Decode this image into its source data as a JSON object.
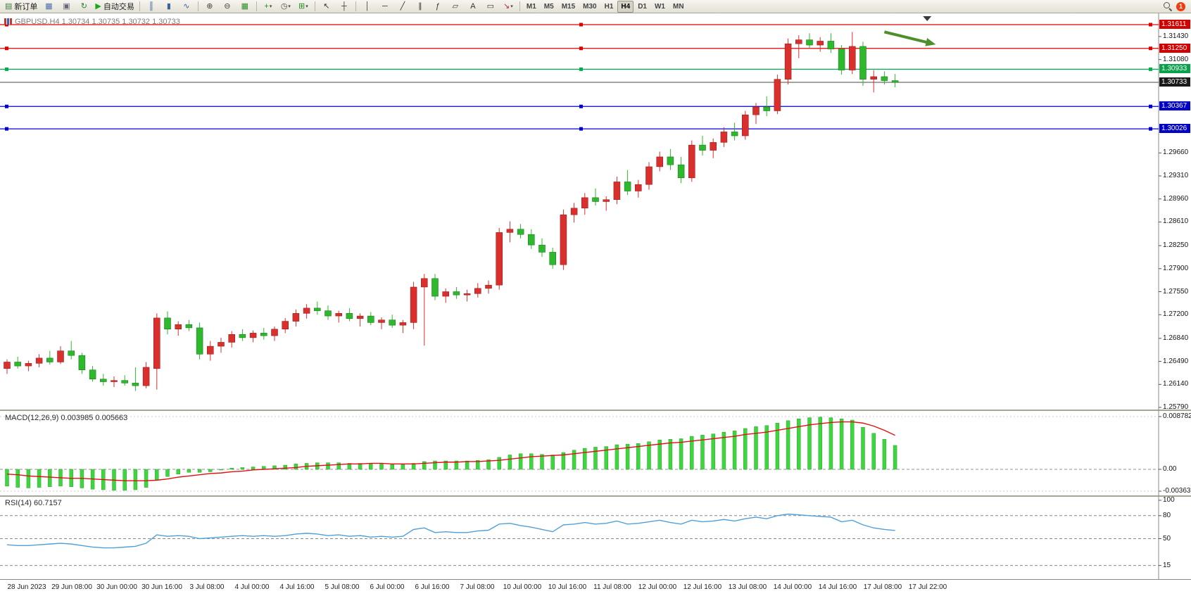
{
  "toolbar": {
    "items": [
      {
        "icon": "new-order-icon",
        "label": "新订单"
      },
      {
        "icon": "chart-window-icon"
      },
      {
        "icon": "print-icon"
      },
      {
        "icon": "refresh-icon"
      },
      {
        "icon": "autotrade-icon",
        "label": "自动交易"
      },
      {
        "sep": true
      },
      {
        "icon": "bars-chart-icon"
      },
      {
        "icon": "candles-chart-icon"
      },
      {
        "icon": "line-chart-icon"
      },
      {
        "sep": true
      },
      {
        "icon": "zoom-in-icon"
      },
      {
        "icon": "zoom-out-icon"
      },
      {
        "icon": "tile-windows-icon"
      },
      {
        "sep": true
      },
      {
        "icon": "new-chart-icon",
        "caret": true
      },
      {
        "icon": "profiles-icon",
        "caret": true
      },
      {
        "icon": "indicators-icon",
        "caret": true
      },
      {
        "sep": true
      },
      {
        "icon": "cursor-icon"
      },
      {
        "icon": "crosshair-icon"
      },
      {
        "sep": true
      },
      {
        "icon": "vline-icon"
      },
      {
        "icon": "hline-icon"
      },
      {
        "icon": "trendline-icon"
      },
      {
        "icon": "channel-icon"
      },
      {
        "icon": "fibo-icon"
      },
      {
        "icon": "shapes-icon"
      },
      {
        "icon": "text-icon"
      },
      {
        "icon": "label-icon"
      },
      {
        "icon": "arrows-icon",
        "caret": true
      },
      {
        "sep": true
      }
    ],
    "timeframes": {
      "items": [
        "M1",
        "M5",
        "M15",
        "M30",
        "H1",
        "H4",
        "D1",
        "W1",
        "MN"
      ],
      "active": "H4"
    },
    "notification_count": "1"
  },
  "chart_header": {
    "text": "GBPUSD,H4  1.30734 1.30735 1.30732 1.30733"
  },
  "chart_data": [
    {
      "type": "candlestick",
      "symbol": "GBPUSD",
      "timeframe": "H4",
      "ylim": [
        1.2579,
        1.31611
      ],
      "colors": {
        "up": "#d9302e",
        "down": "#2eb82e"
      },
      "ohlc": [
        [
          1.2638,
          1.2652,
          1.263,
          1.2648
        ],
        [
          1.2648,
          1.2656,
          1.2638,
          1.2642
        ],
        [
          1.2642,
          1.265,
          1.2634,
          1.2646
        ],
        [
          1.2646,
          1.266,
          1.264,
          1.2654
        ],
        [
          1.2654,
          1.2665,
          1.2644,
          1.2648
        ],
        [
          1.2648,
          1.2672,
          1.2645,
          1.2665
        ],
        [
          1.2665,
          1.268,
          1.2652,
          1.2658
        ],
        [
          1.2658,
          1.2662,
          1.263,
          1.2636
        ],
        [
          1.2636,
          1.2642,
          1.2618,
          1.2622
        ],
        [
          1.2622,
          1.263,
          1.2612,
          1.2618
        ],
        [
          1.2618,
          1.2626,
          1.261,
          1.262
        ],
        [
          1.262,
          1.2628,
          1.2612,
          1.2616
        ],
        [
          1.2616,
          1.264,
          1.2604,
          1.2612
        ],
        [
          1.2612,
          1.2648,
          1.2608,
          1.264
        ],
        [
          1.2638,
          1.2722,
          1.2606,
          1.2715
        ],
        [
          1.2715,
          1.2725,
          1.269,
          1.2698
        ],
        [
          1.2698,
          1.271,
          1.2688,
          1.2705
        ],
        [
          1.2705,
          1.2712,
          1.2695,
          1.27
        ],
        [
          1.27,
          1.2708,
          1.2652,
          1.266
        ],
        [
          1.266,
          1.268,
          1.265,
          1.2672
        ],
        [
          1.2672,
          1.2685,
          1.2662,
          1.2678
        ],
        [
          1.2678,
          1.2695,
          1.267,
          1.269
        ],
        [
          1.269,
          1.2698,
          1.268,
          1.2685
        ],
        [
          1.2685,
          1.2696,
          1.2678,
          1.2692
        ],
        [
          1.2692,
          1.27,
          1.2682,
          1.2688
        ],
        [
          1.2688,
          1.2702,
          1.268,
          1.2698
        ],
        [
          1.2698,
          1.2715,
          1.2692,
          1.271
        ],
        [
          1.271,
          1.2728,
          1.2702,
          1.2722
        ],
        [
          1.2722,
          1.2736,
          1.2714,
          1.273
        ],
        [
          1.273,
          1.274,
          1.272,
          1.2726
        ],
        [
          1.2726,
          1.2734,
          1.2712,
          1.2718
        ],
        [
          1.2718,
          1.2726,
          1.2708,
          1.2722
        ],
        [
          1.2722,
          1.273,
          1.271,
          1.2714
        ],
        [
          1.2714,
          1.2722,
          1.2702,
          1.2718
        ],
        [
          1.2718,
          1.2724,
          1.2704,
          1.2708
        ],
        [
          1.2708,
          1.2716,
          1.2698,
          1.2712
        ],
        [
          1.2712,
          1.272,
          1.27,
          1.2704
        ],
        [
          1.2704,
          1.2712,
          1.2692,
          1.2708
        ],
        [
          1.2708,
          1.277,
          1.2698,
          1.2762
        ],
        [
          1.2762,
          1.2782,
          1.2673,
          1.2775
        ],
        [
          1.2775,
          1.2782,
          1.2742,
          1.2748
        ],
        [
          1.2748,
          1.276,
          1.2738,
          1.2755
        ],
        [
          1.2755,
          1.2762,
          1.2744,
          1.275
        ],
        [
          1.275,
          1.2758,
          1.274,
          1.2752
        ],
        [
          1.2752,
          1.2768,
          1.2746,
          1.276
        ],
        [
          1.276,
          1.2772,
          1.2752,
          1.2765
        ],
        [
          1.2765,
          1.2852,
          1.2758,
          1.2845
        ],
        [
          1.2845,
          1.2862,
          1.283,
          1.285
        ],
        [
          1.285,
          1.2858,
          1.2836,
          1.2842
        ],
        [
          1.2842,
          1.285,
          1.282,
          1.2826
        ],
        [
          1.2826,
          1.2836,
          1.2808,
          1.2815
        ],
        [
          1.2815,
          1.2822,
          1.279,
          1.2796
        ],
        [
          1.2796,
          1.288,
          1.2788,
          1.2872
        ],
        [
          1.2872,
          1.289,
          1.286,
          1.2882
        ],
        [
          1.2882,
          1.2905,
          1.2872,
          1.2898
        ],
        [
          1.2898,
          1.2912,
          1.2886,
          1.2892
        ],
        [
          1.2892,
          1.29,
          1.2878,
          1.2895
        ],
        [
          1.2895,
          1.293,
          1.2888,
          1.2922
        ],
        [
          1.2922,
          1.294,
          1.2902,
          1.2908
        ],
        [
          1.2908,
          1.2925,
          1.2898,
          1.2918
        ],
        [
          1.2918,
          1.2952,
          1.291,
          1.2945
        ],
        [
          1.2945,
          1.2968,
          1.2938,
          1.296
        ],
        [
          1.296,
          1.2972,
          1.294,
          1.2948
        ],
        [
          1.2948,
          1.296,
          1.292,
          1.2928
        ],
        [
          1.2928,
          1.2985,
          1.2922,
          1.2978
        ],
        [
          1.2978,
          1.2992,
          1.2962,
          1.297
        ],
        [
          1.297,
          1.2988,
          1.2958,
          1.2982
        ],
        [
          1.2982,
          1.3005,
          1.2975,
          1.2998
        ],
        [
          1.2998,
          1.3012,
          1.2985,
          1.2992
        ],
        [
          1.2992,
          1.303,
          1.2986,
          1.3024
        ],
        [
          1.3024,
          1.3042,
          1.301,
          1.3036
        ],
        [
          1.3036,
          1.3052,
          1.3022,
          1.303
        ],
        [
          1.303,
          1.3085,
          1.3025,
          1.3078
        ],
        [
          1.3078,
          1.314,
          1.307,
          1.3132
        ],
        [
          1.3132,
          1.3145,
          1.311,
          1.3138
        ],
        [
          1.3138,
          1.3148,
          1.3125,
          1.313
        ],
        [
          1.313,
          1.3142,
          1.312,
          1.3136
        ],
        [
          1.3136,
          1.3148,
          1.3118,
          1.3124
        ],
        [
          1.3124,
          1.313,
          1.3085,
          1.3092
        ],
        [
          1.3092,
          1.315,
          1.3086,
          1.3128
        ],
        [
          1.3128,
          1.3135,
          1.3068,
          1.3078
        ],
        [
          1.3078,
          1.3092,
          1.3058,
          1.3082
        ],
        [
          1.3082,
          1.309,
          1.307,
          1.3076
        ],
        [
          1.3076,
          1.3086,
          1.3066,
          1.30733
        ]
      ],
      "hlines": [
        {
          "price": 1.31611,
          "color": "#e00000",
          "selected": true,
          "w": 1.3
        },
        {
          "price": 1.3125,
          "color": "#e00000",
          "selected": true,
          "w": 1.3
        },
        {
          "price": 1.30933,
          "color": "#00b050",
          "selected": true,
          "w": 1.3
        },
        {
          "price": 1.30733,
          "color": "#4a4a4a",
          "selected": false,
          "w": 1
        },
        {
          "price": 1.30367,
          "color": "#0000d0",
          "selected": true,
          "w": 1.3
        },
        {
          "price": 1.30026,
          "color": "#0000d0",
          "selected": true,
          "w": 1.3
        }
      ],
      "price_ticks": [
        "1.31430",
        "1.31080",
        "1.29660",
        "1.29310",
        "1.28960",
        "1.28610",
        "1.28250",
        "1.27900",
        "1.27550",
        "1.27200",
        "1.26840",
        "1.26490",
        "1.26140",
        "1.25790"
      ],
      "price_badges": [
        {
          "value": "1.31611",
          "color": "#d20000"
        },
        {
          "value": "1.31250",
          "color": "#d20000"
        },
        {
          "value": "1.30933",
          "color": "#0aa14a"
        },
        {
          "value": "1.30733",
          "color": "#1a1a1a"
        },
        {
          "value": "1.30367",
          "color": "#0000c8"
        },
        {
          "value": "1.30026",
          "color": "#0000c8"
        }
      ],
      "time_labels": [
        "28 Jun 2023",
        "29 Jun 08:00",
        "30 Jun 00:00",
        "30 Jun 16:00",
        "3 Jul 08:00",
        "4 Jul 00:00",
        "4 Jul 16:00",
        "5 Jul 08:00",
        "6 Jul 00:00",
        "6 Jul 16:00",
        "7 Jul 08:00",
        "10 Jul 00:00",
        "10 Jul 16:00",
        "11 Jul 08:00",
        "12 Jul 00:00",
        "12 Jul 16:00",
        "13 Jul 08:00",
        "14 Jul 00:00",
        "14 Jul 16:00",
        "17 Jul 08:00",
        "17 Jul 22:00"
      ],
      "annotations": [
        {
          "type": "arrow",
          "from": {
            "index": 82,
            "price": 1.315
          },
          "to": {
            "index": 86.8,
            "price": 1.3131
          },
          "color": "#4e8f2c"
        },
        {
          "type": "shift-marker",
          "index": 86
        }
      ]
    },
    {
      "type": "bar",
      "title": "MACD(12,26,9) 0.003985 0.005663",
      "bar_color": "#3ed63e",
      "line_color": "#e01010",
      "histogram": [
        -0.0028,
        -0.003,
        -0.0031,
        -0.003,
        -0.0029,
        -0.0028,
        -0.0029,
        -0.0031,
        -0.0033,
        -0.0034,
        -0.0035,
        -0.0035,
        -0.0034,
        -0.003,
        -0.0018,
        -0.0012,
        -0.0008,
        -0.0005,
        -0.0005,
        -0.0004,
        0.0,
        0.0002,
        0.0003,
        0.0004,
        0.0005,
        0.0006,
        0.0007,
        0.0009,
        0.001,
        0.0011,
        0.0011,
        0.0011,
        0.001,
        0.001,
        0.0009,
        0.0009,
        0.0008,
        0.0008,
        0.001,
        0.0013,
        0.0014,
        0.0014,
        0.0014,
        0.0014,
        0.0015,
        0.0016,
        0.002,
        0.0024,
        0.0026,
        0.0026,
        0.0025,
        0.0024,
        0.0028,
        0.0032,
        0.0035,
        0.0037,
        0.0038,
        0.0041,
        0.0042,
        0.0043,
        0.0046,
        0.0049,
        0.005,
        0.0051,
        0.0055,
        0.0057,
        0.0059,
        0.0062,
        0.0064,
        0.0068,
        0.0071,
        0.0073,
        0.0077,
        0.0081,
        0.0084,
        0.0086,
        0.0087,
        0.0086,
        0.0084,
        0.0082,
        0.007,
        0.006,
        0.005,
        0.003985
      ],
      "signal": [
        -0.0008,
        -0.0009,
        -0.0011,
        -0.0012,
        -0.0013,
        -0.0014,
        -0.0015,
        -0.0015,
        -0.0016,
        -0.0017,
        -0.0018,
        -0.0019,
        -0.0019,
        -0.0019,
        -0.0018,
        -0.0016,
        -0.0013,
        -0.0011,
        -0.0009,
        -0.0007,
        -0.0006,
        -0.0004,
        -0.0003,
        -0.0001,
        0.0,
        0.0001,
        0.0002,
        0.0003,
        0.0005,
        0.0006,
        0.0007,
        0.0008,
        0.0009,
        0.0009,
        0.001,
        0.001,
        0.0009,
        0.0009,
        0.0009,
        0.001,
        0.0011,
        0.0012,
        0.0012,
        0.0013,
        0.0013,
        0.0014,
        0.0015,
        0.0017,
        0.0019,
        0.0021,
        0.0022,
        0.0023,
        0.0024,
        0.0026,
        0.0028,
        0.003,
        0.0032,
        0.0034,
        0.0036,
        0.0038,
        0.004,
        0.0042,
        0.0044,
        0.0045,
        0.0047,
        0.0049,
        0.0051,
        0.0053,
        0.0055,
        0.0058,
        0.006,
        0.0062,
        0.0065,
        0.0068,
        0.0071,
        0.0074,
        0.0076,
        0.0078,
        0.0079,
        0.0079,
        0.0077,
        0.0072,
        0.0065,
        0.005663
      ],
      "axis_labels": [
        {
          "text": "0.008782",
          "value": 0.008782
        },
        {
          "text": "0.00",
          "value": 0
        },
        {
          "text": "-0.003637",
          "value": -0.003637
        }
      ]
    },
    {
      "type": "line",
      "title": "RSI(14) 60.7157",
      "line_color": "#4f9fd8",
      "values": [
        42,
        41,
        41,
        42,
        43,
        44,
        43,
        41,
        39,
        38,
        38,
        39,
        40,
        44,
        55,
        53,
        54,
        53,
        50,
        51,
        52,
        53,
        54,
        53,
        54,
        53,
        54,
        56,
        57,
        56,
        54,
        55,
        53,
        54,
        52,
        53,
        52,
        53,
        62,
        64,
        58,
        59,
        58,
        58,
        60,
        61,
        69,
        70,
        67,
        65,
        62,
        59,
        68,
        69,
        71,
        69,
        70,
        73,
        69,
        70,
        72,
        74,
        71,
        69,
        74,
        72,
        73,
        75,
        73,
        76,
        78,
        76,
        80,
        82,
        81,
        80,
        79,
        78,
        72,
        74,
        68,
        64,
        62,
        60.7
      ],
      "levels": [
        80,
        50,
        15
      ],
      "axis_labels": [
        {
          "text": "100",
          "value": 100
        },
        {
          "text": "80",
          "value": 80
        },
        {
          "text": "50",
          "value": 50
        },
        {
          "text": "15",
          "value": 15
        }
      ]
    }
  ]
}
